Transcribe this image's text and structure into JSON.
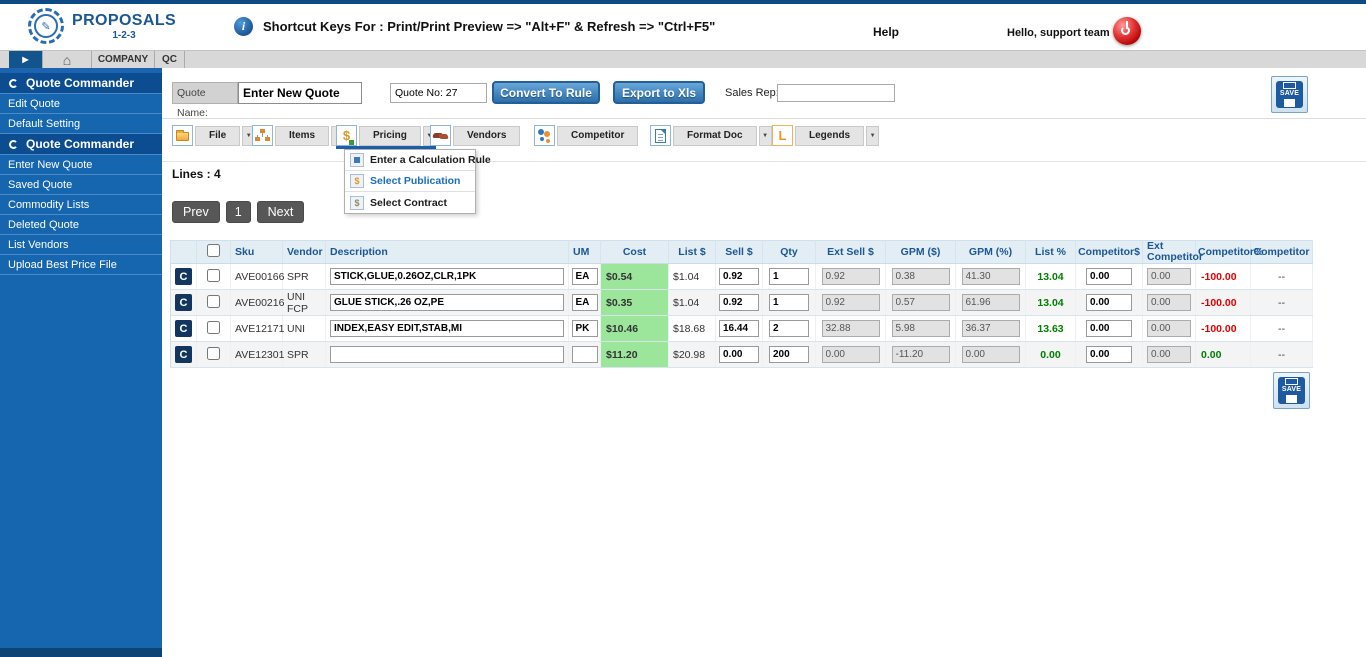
{
  "header": {
    "logo_title": "PROPOSALS",
    "logo_subtitle": "1-2-3",
    "shortcut_text": "Shortcut Keys For : Print/Print Preview => \"Alt+F\" & Refresh => \"Ctrl+F5\"",
    "help": "Help",
    "greeting": "Hello, support team"
  },
  "tabs": {
    "company": "COMPANY",
    "qc": "QC"
  },
  "sidebar": {
    "sections": [
      {
        "header": "Quote Commander",
        "items": [
          "Edit Quote",
          "Default Setting"
        ]
      },
      {
        "header": "Quote Commander",
        "items": [
          "Enter New Quote",
          "Saved Quote",
          "Commodity Lists",
          "Deleted Quote",
          "List Vendors",
          "Upload Best Price File"
        ]
      }
    ]
  },
  "toolbar": {
    "quote_name_label": "Quote Name:",
    "quote_name_value": "Enter New Quote",
    "quote_no_value": "Quote No: 27",
    "convert_button": "Convert To Rule",
    "export_button": "Export to Xls",
    "sales_rep_label": "Sales Rep:",
    "sales_rep_value": "",
    "save_label": "SAVE"
  },
  "menubar": {
    "file": "File",
    "items": "Items",
    "pricing": "Pricing",
    "vendors": "Vendors",
    "competitor": "Competitor",
    "format_doc": "Format Doc",
    "legends": "Legends"
  },
  "pricing_menu": [
    "Enter a Calculation Rule",
    "Select Publication",
    "Select Contract"
  ],
  "quote": {
    "lines_label": "Lines : 4",
    "pagination": {
      "prev": "Prev",
      "page": "1",
      "next": "Next"
    }
  },
  "table": {
    "columns": [
      "",
      "",
      "Sku",
      "Vendor",
      "Description",
      "UM",
      "Cost",
      "List $",
      "Sell $",
      "Qty",
      "Ext Sell $",
      "GPM ($)",
      "GPM (%)",
      "List %",
      "Competitor$",
      "Ext Competitor",
      "Competitor%",
      "Competitor"
    ],
    "rows": [
      {
        "row_badge": "C",
        "sku": "AVE00166",
        "vendor": "SPR",
        "description": "STICK,GLUE,0.26OZ,CLR,1PK",
        "um": "EA",
        "cost": "$0.54",
        "list_price": "$1.04",
        "sell": "0.92",
        "qty": "1",
        "ext_sell": "0.92",
        "gpm_dollar": "0.38",
        "gpm_pct": "41.30",
        "list_pct": "13.04",
        "list_pct_color": "#008000",
        "competitor_dollar": "0.00",
        "ext_competitor": "0.00",
        "competitor_pct": "-100.00",
        "competitor_pct_color": "#e00000",
        "competitor": "--"
      },
      {
        "row_badge": "C",
        "sku": "AVE00216",
        "vendor": "UNI FCP",
        "description": "GLUE STICK,.26 OZ,PE",
        "um": "EA",
        "cost": "$0.35",
        "list_price": "$1.04",
        "sell": "0.92",
        "qty": "1",
        "ext_sell": "0.92",
        "gpm_dollar": "0.57",
        "gpm_pct": "61.96",
        "list_pct": "13.04",
        "list_pct_color": "#008000",
        "competitor_dollar": "0.00",
        "ext_competitor": "0.00",
        "competitor_pct": "-100.00",
        "competitor_pct_color": "#e00000",
        "competitor": "--"
      },
      {
        "row_badge": "C",
        "sku": "AVE12171",
        "vendor": "UNI",
        "description": "INDEX,EASY EDIT,STAB,MI",
        "um": "PK",
        "cost": "$10.46",
        "list_price": "$18.68",
        "sell": "16.44",
        "qty": "2",
        "ext_sell": "32.88",
        "gpm_dollar": "5.98",
        "gpm_pct": "36.37",
        "list_pct": "13.63",
        "list_pct_color": "#008000",
        "competitor_dollar": "0.00",
        "ext_competitor": "0.00",
        "competitor_pct": "-100.00",
        "competitor_pct_color": "#e00000",
        "competitor": "--"
      },
      {
        "row_badge": "C",
        "sku": "AVE12301",
        "vendor": "SPR",
        "description": "",
        "um": "",
        "cost": "$11.20",
        "list_price": "$20.98",
        "sell": "0.00",
        "qty": "200",
        "ext_sell": "0.00",
        "gpm_dollar": "-11.20",
        "gpm_pct": "0.00",
        "list_pct": "0.00",
        "list_pct_color": "#008000",
        "competitor_dollar": "0.00",
        "ext_competitor": "0.00",
        "competitor_pct": "0.00",
        "competitor_pct_color": "#008000",
        "competitor": "--"
      }
    ]
  },
  "colors": {
    "accent_blue": "#1a5794",
    "sidebar_blue": "#1565af",
    "sidebar_header_blue": "#0c4d92",
    "cost_highlight_green": "#9ce69c",
    "positive_green": "#008000",
    "negative_red": "#e00000",
    "button_blue": "#4286c0"
  }
}
